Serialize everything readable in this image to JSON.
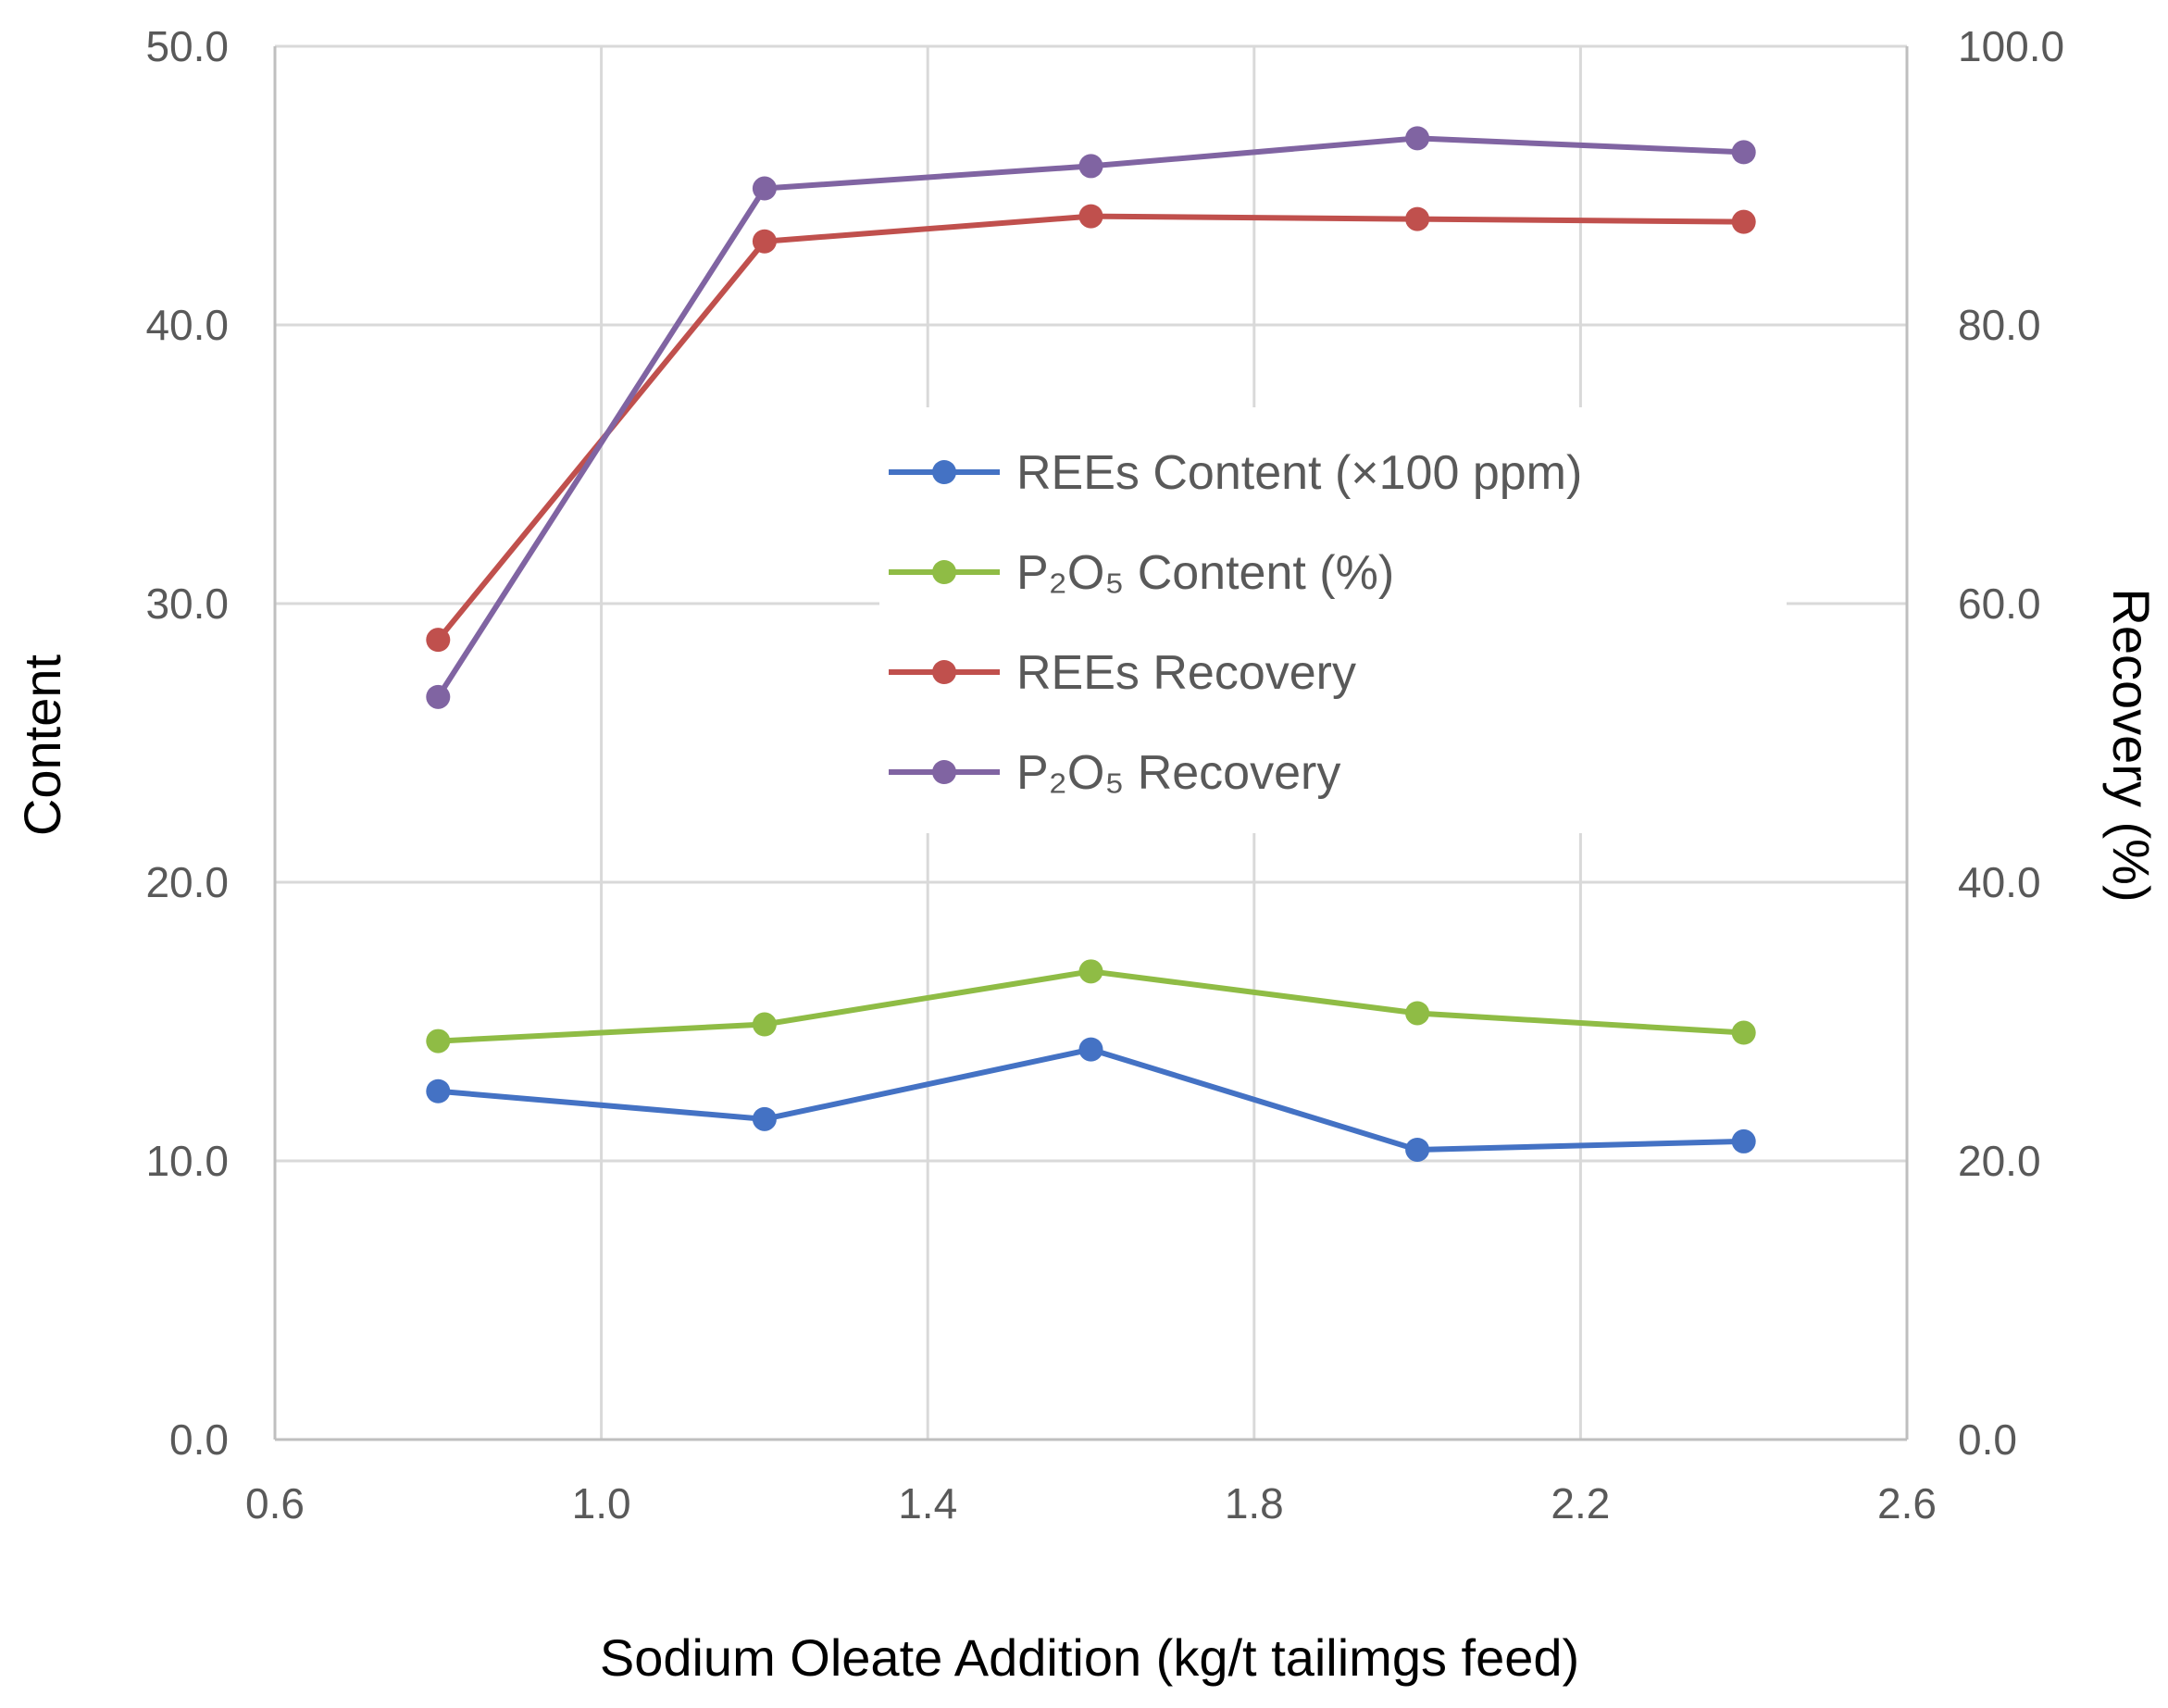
{
  "chart_data": {
    "type": "line",
    "xlabel": "Sodium Oleate Addition (kg/t tailimgs feed)",
    "ylabel": "Content",
    "y2label": "Recovery (%)",
    "xlim": [
      0.6,
      2.6
    ],
    "xticks": [
      "0.6",
      "1.0",
      "1.4",
      "1.8",
      "2.2",
      "2.6"
    ],
    "ylim": [
      0,
      50
    ],
    "yticks": [
      "0.0",
      "10.0",
      "20.0",
      "30.0",
      "40.0",
      "50.0"
    ],
    "y2lim": [
      0,
      100
    ],
    "y2ticks": [
      "0.0",
      "20.0",
      "40.0",
      "60.0",
      "80.0",
      "100.0"
    ],
    "grid": true,
    "legend_position": "center",
    "x": [
      0.8,
      1.2,
      1.6,
      2.0,
      2.4
    ],
    "series": [
      {
        "name": "REEs Content (×100 ppm)",
        "axis": "left",
        "color": "#4472C4",
        "values": [
          12.5,
          11.5,
          14.0,
          10.4,
          10.7
        ]
      },
      {
        "name": "P₂O₅ Content (%)",
        "axis": "left",
        "color": "#8FBC45",
        "values": [
          14.3,
          14.9,
          16.8,
          15.3,
          14.6
        ]
      },
      {
        "name": "REEs Recovery",
        "axis": "right",
        "color": "#C0504D",
        "values": [
          57.4,
          86.0,
          87.8,
          87.6,
          87.4
        ]
      },
      {
        "name": "P₂O₅ Recovery",
        "axis": "right",
        "color": "#8064A2",
        "values": [
          53.3,
          89.8,
          91.4,
          93.4,
          92.4
        ]
      }
    ]
  }
}
